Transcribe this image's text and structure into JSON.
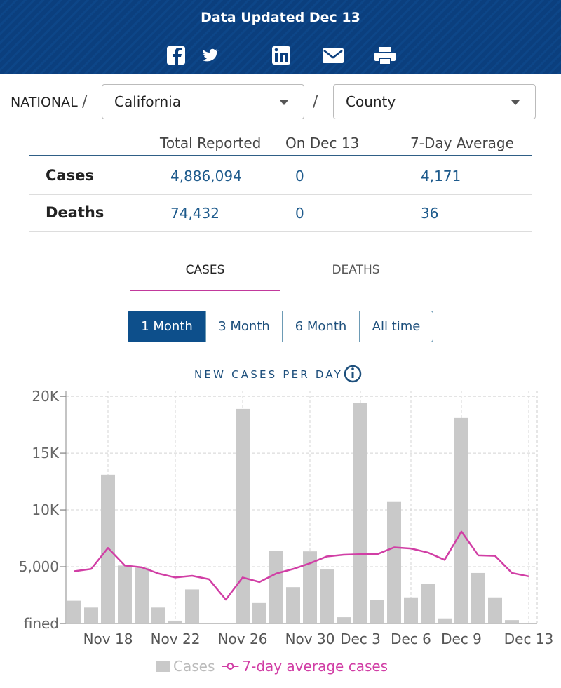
{
  "header": {
    "title": "Data Updated Dec 13"
  },
  "breadcrumb": {
    "root": "NATIONAL",
    "separator": "/",
    "state": "California",
    "county": "County"
  },
  "table": {
    "columns": [
      "Total Reported",
      "On Dec 13",
      "7-Day Average"
    ],
    "rows": [
      {
        "label": "Cases",
        "values": [
          "4,886,094",
          "0",
          "4,171"
        ]
      },
      {
        "label": "Deaths",
        "values": [
          "74,432",
          "0",
          "36"
        ]
      }
    ]
  },
  "tabs": [
    "CASES",
    "DEATHS"
  ],
  "ranges": [
    "1 Month",
    "3 Month",
    "6 Month",
    "All time"
  ],
  "chart_data": {
    "type": "bar",
    "title": "NEW CASES PER DAY",
    "categories": [
      null,
      null,
      "Nov 18",
      null,
      null,
      null,
      "Nov 22",
      null,
      null,
      null,
      "Nov 26",
      null,
      null,
      null,
      "Nov 30",
      null,
      null,
      "Dec 3",
      null,
      null,
      "Dec 6",
      null,
      null,
      "Dec 9",
      null,
      null,
      null,
      "Dec 13"
    ],
    "series": [
      {
        "name": "Cases",
        "color": "#c9c9c9",
        "type": "bar",
        "values": [
          2000,
          1400,
          13100,
          5100,
          4900,
          1400,
          250,
          3000,
          0,
          0,
          18900,
          1800,
          6400,
          3200,
          6350,
          4750,
          550,
          19400,
          2050,
          10700,
          2300,
          3500,
          450,
          18100,
          4450,
          2300,
          300,
          0
        ]
      },
      {
        "name": "7-day average cases",
        "color": "#d13ea5",
        "type": "line",
        "values": [
          4600,
          4800,
          6650,
          5100,
          4950,
          4400,
          4050,
          4200,
          3900,
          2100,
          4050,
          3650,
          4400,
          4800,
          5300,
          5900,
          6050,
          6100,
          6100,
          6700,
          6600,
          6250,
          5600,
          8100,
          6000,
          5950,
          4450,
          4150
        ]
      }
    ],
    "ylim": [
      0,
      20500
    ],
    "yticks": [
      {
        "value": 0,
        "label": "fined"
      },
      {
        "value": 5000,
        "label": "5,000"
      },
      {
        "value": 10000,
        "label": "10K"
      },
      {
        "value": 15000,
        "label": "15K"
      },
      {
        "value": 20000,
        "label": "20K"
      }
    ],
    "grid": true,
    "legend": "bottom"
  }
}
